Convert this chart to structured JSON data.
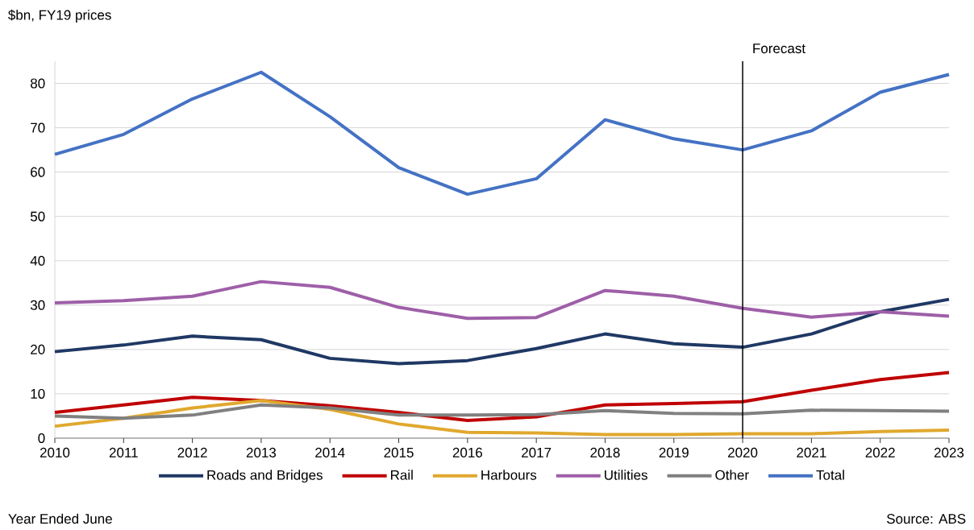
{
  "chart_data": {
    "type": "line",
    "ylabel": "$bn, FY19 prices",
    "xlabel": "Year Ended June",
    "annotations": [
      "Source: ABS"
    ],
    "x": [
      2010,
      2011,
      2012,
      2013,
      2014,
      2015,
      2016,
      2017,
      2018,
      2019,
      2020,
      2021,
      2022,
      2023
    ],
    "xlim": [
      2010,
      2023
    ],
    "xticks": [
      2010,
      2011,
      2012,
      2013,
      2014,
      2015,
      2016,
      2017,
      2018,
      2019,
      2020,
      2021,
      2022,
      2023
    ],
    "ylim": [
      0,
      85
    ],
    "yticks": [
      0,
      10,
      20,
      30,
      40,
      50,
      60,
      70,
      80
    ],
    "grid": "y",
    "legend": "bottom",
    "marker": "none",
    "line_style": "solid",
    "ref_lines": [
      {
        "axis": "x",
        "value": 2020,
        "label": "Forecast",
        "color": "#000000"
      }
    ],
    "series": [
      {
        "name": "Roads and Bridges",
        "color": "#1f3864",
        "values": [
          19.5,
          21,
          23,
          22.2,
          18,
          16.8,
          17.5,
          20.2,
          23.5,
          21.3,
          20.5,
          23.5,
          28.5,
          31.3
        ]
      },
      {
        "name": "Rail",
        "color": "#c00000",
        "values": [
          5.8,
          7.5,
          9.2,
          8.5,
          7.3,
          5.8,
          4,
          4.8,
          7.5,
          7.8,
          8.2,
          10.8,
          13.2,
          14.8
        ]
      },
      {
        "name": "Harbours",
        "color": "#e0a82e",
        "values": [
          2.7,
          4.5,
          6.8,
          8.5,
          6.5,
          3.2,
          1.3,
          1.2,
          0.8,
          0.8,
          1.0,
          1.0,
          1.5,
          1.8
        ]
      },
      {
        "name": "Utilities",
        "color": "#9e5fa8",
        "values": [
          30.5,
          31,
          32,
          35.3,
          34,
          29.5,
          27,
          27.2,
          33.3,
          32,
          29.3,
          27.3,
          28.5,
          27.5
        ]
      },
      {
        "name": "Other",
        "color": "#808080",
        "values": [
          5,
          4.5,
          5.2,
          7.5,
          6.8,
          5.2,
          5.2,
          5.3,
          6.2,
          5.6,
          5.5,
          6.3,
          6.2,
          6.1
        ]
      },
      {
        "name": "Total",
        "color": "#4472c4",
        "values": [
          64,
          68.5,
          76.5,
          82.5,
          72.5,
          61,
          55,
          58.5,
          71.8,
          67.5,
          65,
          69.3,
          78,
          82
        ]
      }
    ]
  }
}
